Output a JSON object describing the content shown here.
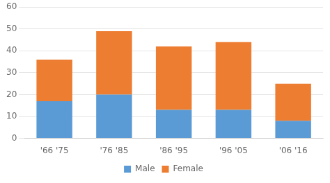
{
  "chart_data": {
    "type": "bar",
    "stacked": true,
    "categories": [
      "'66 '75",
      "'76 '85",
      "'86 '95",
      "'96 '05",
      "'06 '16"
    ],
    "series": [
      {
        "name": "Male",
        "color": "#5b9bd5",
        "values": [
          17,
          20,
          13,
          13,
          8
        ]
      },
      {
        "name": "Female",
        "color": "#ed7d31",
        "values": [
          19,
          29,
          29,
          31,
          17
        ]
      }
    ],
    "ylim": [
      0,
      60
    ],
    "yticks": [
      0,
      10,
      20,
      30,
      40,
      50,
      60
    ],
    "grid": true,
    "legend": "bottom"
  }
}
